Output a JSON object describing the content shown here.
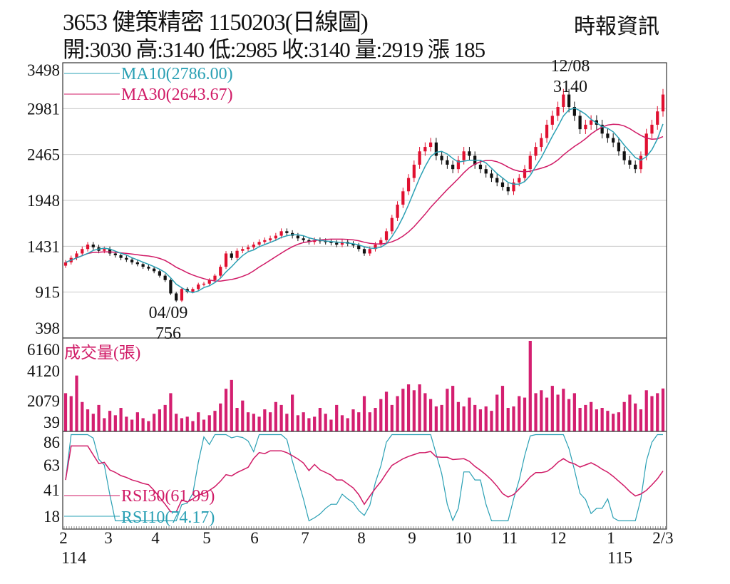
{
  "header": {
    "title": "3653  健策精密 1150203(日線圖)",
    "source": "時報資訊",
    "quote": "開:3030 高:3140 低:2985 收:3140 量:2919 漲 185"
  },
  "colors": {
    "up": "#e01030",
    "down": "#111111",
    "ma10": "#2aa0b4",
    "ma30": "#d01a66",
    "volume": "#d41f70",
    "rsi30": "#d01a66",
    "rsi10": "#2aa0b4",
    "grid": "#c8c8c8"
  },
  "chart_data": [
    {
      "type": "candlestick",
      "panel": "price",
      "yticks": [
        "3498",
        "2981",
        "2465",
        "1948",
        "1431",
        "915",
        "398"
      ],
      "ylim": [
        398,
        3498
      ],
      "grid": true,
      "legend": [
        {
          "name": "MA10(2786.00)",
          "color": "#2aa0b4"
        },
        {
          "name": "MA30(2643.67)",
          "color": "#d01a66"
        }
      ],
      "annotations": [
        {
          "date": "12/08",
          "value": "3140"
        },
        {
          "date": "04/09",
          "value": "756"
        }
      ],
      "close": [
        1250,
        1300,
        1350,
        1400,
        1450,
        1420,
        1380,
        1400,
        1350,
        1330,
        1300,
        1280,
        1250,
        1230,
        1200,
        1180,
        1150,
        1100,
        1050,
        900,
        820,
        950,
        920,
        950,
        1000,
        1010,
        1050,
        1100,
        1200,
        1350,
        1300,
        1380,
        1400,
        1420,
        1450,
        1480,
        1500,
        1520,
        1550,
        1600,
        1580,
        1550,
        1520,
        1500,
        1480,
        1500,
        1490,
        1480,
        1470,
        1450,
        1480,
        1460,
        1440,
        1400,
        1350,
        1400,
        1450,
        1500,
        1600,
        1750,
        1900,
        2050,
        2200,
        2350,
        2500,
        2550,
        2600,
        2450,
        2400,
        2350,
        2300,
        2400,
        2500,
        2450,
        2350,
        2300,
        2250,
        2200,
        2150,
        2100,
        2050,
        2150,
        2200,
        2300,
        2450,
        2550,
        2650,
        2800,
        2900,
        3000,
        3140,
        3000,
        2900,
        2750,
        2800,
        2850,
        2800,
        2700,
        2650,
        2600,
        2500,
        2400,
        2350,
        2300,
        2450,
        2700,
        2800,
        2950,
        3140
      ]
    },
    {
      "type": "bar",
      "panel": "volume",
      "title": "成交量(張)",
      "yticks": [
        "6160",
        "4120",
        "2079",
        "39"
      ],
      "ylim": [
        0,
        6160
      ],
      "values": [
        2600,
        2400,
        3800,
        2000,
        1500,
        1200,
        1800,
        900,
        1400,
        1100,
        1600,
        1000,
        800,
        1300,
        900,
        700,
        1200,
        1500,
        1800,
        2600,
        1200,
        900,
        1000,
        700,
        1300,
        800,
        1100,
        1400,
        1900,
        2900,
        3500,
        1600,
        2100,
        1300,
        1200,
        1000,
        1500,
        1300,
        2000,
        1800,
        1200,
        2500,
        1100,
        1300,
        900,
        1000,
        1600,
        1200,
        800,
        1800,
        1100,
        900,
        1500,
        1300,
        2400,
        1300,
        1600,
        2200,
        2700,
        1800,
        2400,
        2900,
        3200,
        2800,
        3200,
        2600,
        2200,
        1700,
        1800,
        2900,
        3100,
        2000,
        1700,
        2300,
        1800,
        1500,
        1700,
        1400,
        2500,
        3100,
        1600,
        1700,
        2400,
        2300,
        6160,
        2600,
        2800,
        2300,
        3100,
        2500,
        2900,
        2200,
        2600,
        1600,
        1800,
        2000,
        1500,
        1600,
        1400,
        1200,
        1300,
        2000,
        2500,
        1900,
        1500,
        2800,
        2400,
        2600,
        2919
      ]
    },
    {
      "type": "line",
      "panel": "rsi",
      "yticks": [
        "86",
        "63",
        "41",
        "18"
      ],
      "ylim": [
        18,
        86
      ],
      "legend": [
        {
          "name": "RSI30(61.99)",
          "color": "#d01a66"
        },
        {
          "name": "RSI10(74.17)",
          "color": "#2aa0b4"
        }
      ]
    }
  ],
  "xaxis": {
    "months": [
      "2",
      "3",
      "4",
      "5",
      "6",
      "7",
      "8",
      "9",
      "10",
      "11",
      "12",
      "1",
      "2/3"
    ],
    "years": [
      "114",
      "115"
    ]
  }
}
